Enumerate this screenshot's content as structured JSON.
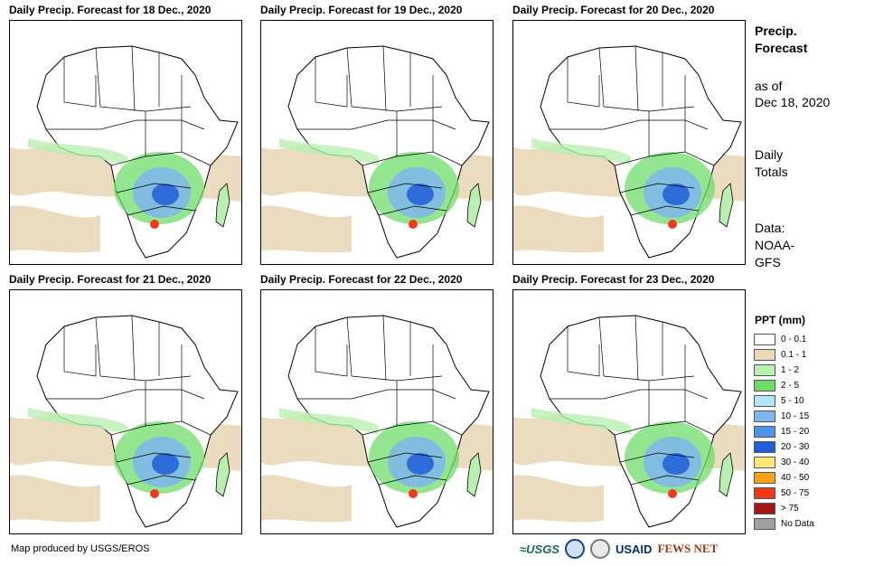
{
  "panels": [
    {
      "title": "Daily Precip. Forecast for 18 Dec., 2020"
    },
    {
      "title": "Daily Precip. Forecast for 19 Dec., 2020"
    },
    {
      "title": "Daily Precip. Forecast for 20 Dec., 2020"
    },
    {
      "title": "Daily Precip. Forecast for 21 Dec., 2020"
    },
    {
      "title": "Daily Precip. Forecast for 22 Dec., 2020"
    },
    {
      "title": "Daily Precip. Forecast for 23 Dec., 2020"
    }
  ],
  "side": {
    "heading_1": "Precip.",
    "heading_2": "Forecast",
    "asof_1": "as of",
    "asof_2": "Dec 18, 2020",
    "totals_1": "Daily",
    "totals_2": "Totals",
    "data_1": "Data:",
    "data_2": "NOAA-",
    "data_3": "GFS"
  },
  "legend": {
    "title": "PPT (mm)",
    "items": [
      {
        "label": "0 - 0.1",
        "color": "#ffffff"
      },
      {
        "label": "0.1 - 1",
        "color": "#ead8b8"
      },
      {
        "label": "1 - 2",
        "color": "#b8f0b0"
      },
      {
        "label": "2 - 5",
        "color": "#6fdc6a"
      },
      {
        "label": "5 - 10",
        "color": "#aee8f8"
      },
      {
        "label": "10 - 15",
        "color": "#7fb6ee"
      },
      {
        "label": "15 - 20",
        "color": "#4f93ea"
      },
      {
        "label": "20 - 30",
        "color": "#1f5fd8"
      },
      {
        "label": "30 - 40",
        "color": "#ffe878"
      },
      {
        "label": "40 - 50",
        "color": "#f7a21b"
      },
      {
        "label": "50 - 75",
        "color": "#ef3a1a"
      },
      {
        "label": "> 75",
        "color": "#a21616"
      },
      {
        "label": "No Data",
        "color": "#a0a0a0"
      }
    ]
  },
  "credit": "Map produced by USGS/EROS",
  "logos": {
    "usgs": "USGS",
    "usaid": "USAID",
    "fews": "FEWS NET"
  }
}
